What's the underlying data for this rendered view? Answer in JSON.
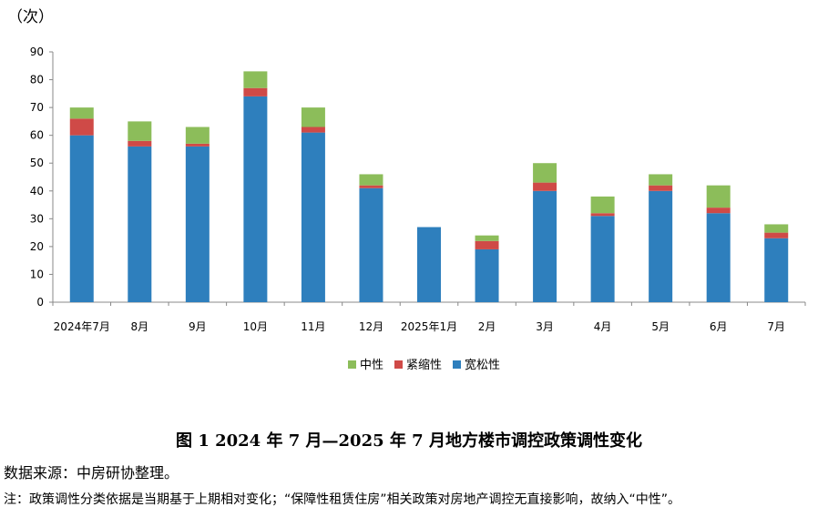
{
  "chart_data": {
    "type": "bar",
    "stacked": true,
    "unit_label": "（次）",
    "categories": [
      "2024年7月",
      "8月",
      "9月",
      "10月",
      "11月",
      "12月",
      "2025年1月",
      "2月",
      "3月",
      "4月",
      "5月",
      "6月",
      "7月"
    ],
    "series": [
      {
        "name": "宽松性",
        "color": "#2e7fbd",
        "values": [
          60,
          56,
          56,
          74,
          61,
          41,
          27,
          19,
          40,
          31,
          40,
          32,
          23
        ]
      },
      {
        "name": "紧缩性",
        "color": "#cf4a47",
        "values": [
          6,
          2,
          1,
          3,
          2,
          1,
          0,
          3,
          3,
          1,
          2,
          2,
          2
        ]
      },
      {
        "name": "中性",
        "color": "#8cbd5a",
        "values": [
          4,
          7,
          6,
          6,
          7,
          4,
          0,
          2,
          7,
          6,
          4,
          8,
          3
        ]
      }
    ],
    "legend_order": [
      "中性",
      "紧缩性",
      "宽松性"
    ],
    "ylim": [
      0,
      90
    ],
    "yticks": [
      0,
      10,
      20,
      30,
      40,
      50,
      60,
      70,
      80,
      90
    ],
    "legend_position": "bottom-center",
    "grid": false
  },
  "caption": "图 1  2024 年 7 月—2025 年 7 月地方楼市调控政策调性变化",
  "source": "数据来源：中房研协整理。",
  "note": "注：政策调性分类依据是当期基于上期相对变化；“保障性租赁住房”相关政策对房地产调控无直接影响，故纳入“中性”。"
}
